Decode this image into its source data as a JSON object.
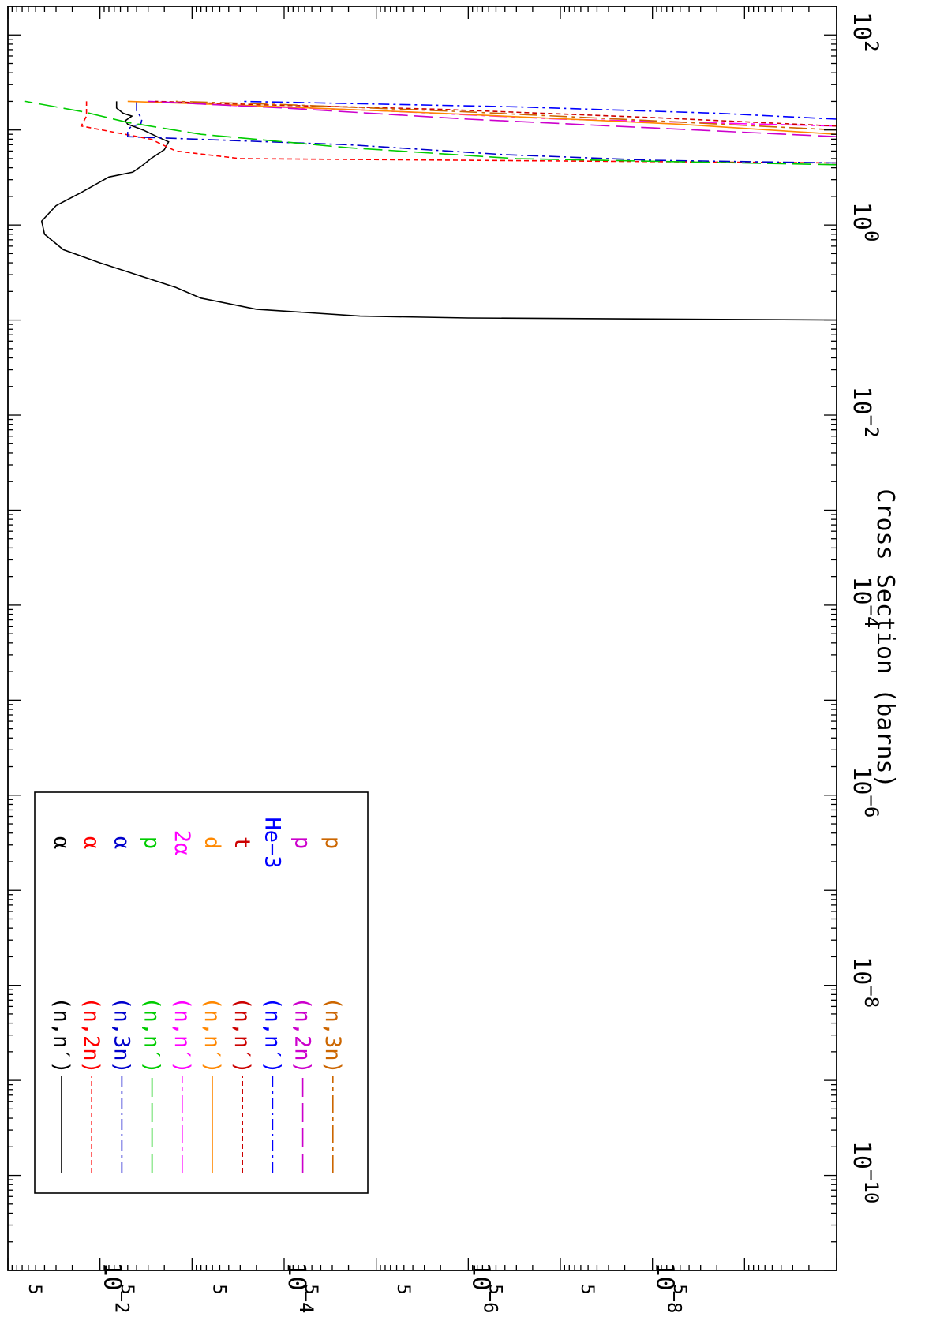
{
  "chart_data": {
    "type": "line",
    "orientation": "rotated-90-clockwise",
    "title": "",
    "xlabel": "",
    "ylabel": "Cross Section (barns)",
    "x_scale": "log",
    "y_scale": "log",
    "xlim": [
      1e-11,
      200
    ],
    "ylim": [
      1e-10,
      0.1
    ],
    "x_ticks": [
      {
        "value": 1e-10,
        "base": "10",
        "exp": "−10"
      },
      {
        "value": 1e-08,
        "base": "10",
        "exp": "−8"
      },
      {
        "value": 1e-06,
        "base": "10",
        "exp": "−6"
      },
      {
        "value": 0.0001,
        "base": "10",
        "exp": "−4"
      },
      {
        "value": 0.01,
        "base": "10",
        "exp": "−2"
      },
      {
        "value": 1,
        "base": "10",
        "exp": "0"
      },
      {
        "value": 100,
        "base": "10",
        "exp": "2"
      }
    ],
    "y_ticks": [
      {
        "value": 1e-08,
        "base": "10",
        "exp": "−8"
      },
      {
        "value": 1e-06,
        "base": "10",
        "exp": "−6"
      },
      {
        "value": 0.0001,
        "base": "10",
        "exp": "−4"
      },
      {
        "value": 0.01,
        "base": "10",
        "exp": "−2"
      }
    ],
    "y_minor_labels": [
      {
        "value": 5e-09,
        "label": "5"
      },
      {
        "value": 5e-08,
        "label": "5"
      },
      {
        "value": 5e-07,
        "label": "5"
      },
      {
        "value": 5e-06,
        "label": "5"
      },
      {
        "value": 5e-05,
        "label": "5"
      },
      {
        "value": 0.0005,
        "label": "5"
      },
      {
        "value": 0.005,
        "label": "5"
      },
      {
        "value": 0.05,
        "label": "5"
      }
    ],
    "grid": false,
    "legend_position": "top-left",
    "series": [
      {
        "reaction": "(n,n′)",
        "product": "α",
        "color": "#000000",
        "dash": "solid",
        "x": [
          0.1,
          0.105,
          0.11,
          0.13,
          0.17,
          0.22,
          0.3,
          0.4,
          0.55,
          0.8,
          1.1,
          1.6,
          2.2,
          3.2,
          3.6,
          4.2,
          5.0,
          6.2,
          7.5,
          8.5,
          10.0,
          11.5,
          12.5,
          14.0,
          15.0,
          17.0,
          20.0
        ],
        "y": [
          1e-10,
          1e-06,
          1.5e-05,
          0.0002,
          0.0008,
          0.0015,
          0.004,
          0.01,
          0.025,
          0.04,
          0.043,
          0.03,
          0.016,
          0.008,
          0.0044,
          0.0035,
          0.0028,
          0.002,
          0.0018,
          0.0024,
          0.0034,
          0.005,
          0.0053,
          0.0045,
          0.0056,
          0.0066,
          0.0066
        ]
      },
      {
        "reaction": "(n,2n)",
        "product": "α",
        "color": "#ff0000",
        "dash": "short",
        "x": [
          4.5,
          5.0,
          6.0,
          8.0,
          11.0,
          14.0,
          16.0,
          20.0
        ],
        "y": [
          1e-10,
          0.0003,
          0.0015,
          0.0028,
          0.016,
          0.014,
          0.014,
          0.014
        ]
      },
      {
        "reaction": "(n,3n)",
        "product": "α",
        "color": "#0000cc",
        "dash": "dashdot",
        "x": [
          4.5,
          4.8,
          5.5,
          7.0,
          8.5,
          10.0,
          11.0,
          11.5,
          13.0,
          16.0,
          20.0
        ],
        "y": [
          1e-10,
          1e-08,
          4e-07,
          2e-05,
          0.005,
          0.005,
          0.0045,
          0.0036,
          0.0035,
          0.004,
          0.004
        ]
      },
      {
        "reaction": "(n,n′)",
        "product": "p",
        "color": "#00cc00",
        "dash": "long",
        "x": [
          4.3,
          5.0,
          6.5,
          9.0,
          12.0,
          15.5,
          20.0
        ],
        "y": [
          1e-10,
          3e-07,
          2e-05,
          0.0008,
          0.005,
          0.015,
          0.065
        ]
      },
      {
        "reaction": "(n,n′)",
        "product": "2α",
        "color": "#ff00ff",
        "dash": "longdot",
        "x": [
          11.0,
          13.0,
          16.0,
          18.0,
          20.0
        ],
        "y": [
          1e-10,
          1e-07,
          1e-05,
          0.0003,
          0.003
        ]
      },
      {
        "reaction": "(n,n′)",
        "product": "d",
        "color": "#ff8800",
        "dash": "solid",
        "x": [
          9.0,
          11.5,
          15.0,
          18.0,
          20.0
        ],
        "y": [
          1e-10,
          5e-09,
          2e-06,
          0.0002,
          0.005
        ]
      },
      {
        "reaction": "(n,n′)",
        "product": "t",
        "color": "#cc0000",
        "dash": "short",
        "x": [
          11.0,
          13.5,
          16.5,
          18.5,
          20.0
        ],
        "y": [
          1e-10,
          1e-08,
          2e-06,
          0.0002,
          0.0025
        ]
      },
      {
        "reaction": "(n,n′)",
        "product": "He−3",
        "color": "#0000ff",
        "dash": "dashdot",
        "x": [
          13.0,
          15.0,
          17.5,
          19.0,
          20.0
        ],
        "y": [
          1e-10,
          2e-09,
          3e-07,
          2e-05,
          0.0003
        ]
      },
      {
        "reaction": "(n,2n)",
        "product": "p",
        "color": "#cc00cc",
        "dash": "long",
        "x": [
          8.5,
          10.5,
          13.0,
          17.0,
          20.0
        ],
        "y": [
          1e-10,
          1e-08,
          1e-06,
          0.0001,
          0.003
        ]
      },
      {
        "reaction": "(n,3n)",
        "product": "p",
        "color": "#cc6600",
        "dash": "longdot",
        "x": [
          10.0,
          12.5,
          15.5,
          18.5,
          20.0
        ],
        "y": [
          1e-10,
          1e-08,
          1e-06,
          0.0001,
          0.0015
        ]
      }
    ]
  }
}
